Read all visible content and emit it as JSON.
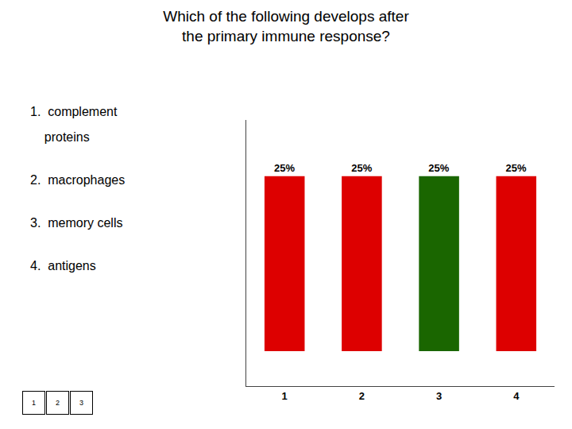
{
  "chart_data": {
    "type": "bar",
    "title": [
      "Which of the following develops after",
      "the primary immune response?"
    ],
    "categories": [
      "1",
      "2",
      "3",
      "4"
    ],
    "values": [
      25,
      25,
      25,
      25
    ],
    "value_labels": [
      "25%",
      "25%",
      "25%",
      "25%"
    ],
    "colors": [
      "#dd0000",
      "#dd0000",
      "#1a6600",
      "#dd0000"
    ],
    "data_labels": true,
    "ylim": [
      -5,
      33
    ],
    "yticks": [],
    "grid": false,
    "tick_labels": "x",
    "annotations": {
      "options": [
        "1.  complement",
        "    proteins",
        "2.  macrophages",
        "3.  memory cells",
        "4.  antigens"
      ],
      "footer": [
        "1",
        "2",
        "3"
      ]
    }
  }
}
